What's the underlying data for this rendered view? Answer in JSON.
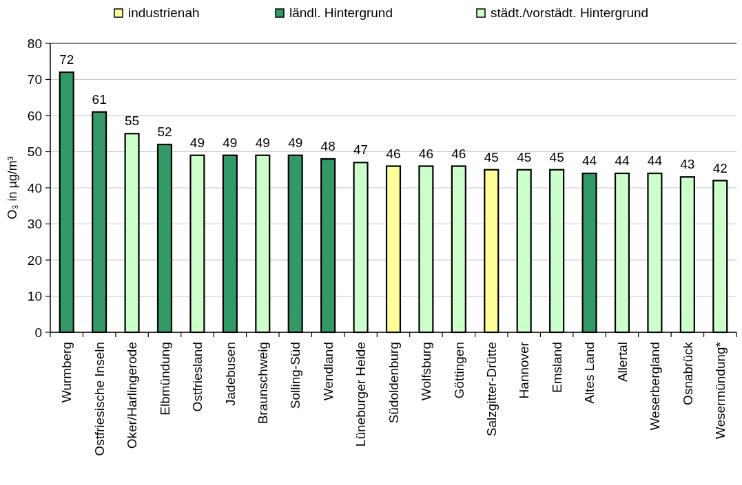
{
  "chart_data": {
    "type": "bar",
    "ylabel": "O₃ in µg/m³",
    "categories": [
      "Wurmberg",
      "Ostfriesische Inseln",
      "Oker/Harlingerode",
      "Elbmündung",
      "Ostfriesland",
      "Jadebusen",
      "Braunschweig",
      "Solling-Süd",
      "Wendland",
      "Lüneburger Heide",
      "Südoldenburg",
      "Wolfsburg",
      "Göttingen",
      "Salzgitter-Drütte",
      "Hannover",
      "Emsland",
      "Altes Land",
      "Allertal",
      "Weserbergland",
      "Osnabrück",
      "Wesermündung*"
    ],
    "series": [
      {
        "name": "industrienah",
        "color": "#ffff99",
        "values": [
          null,
          null,
          null,
          null,
          null,
          null,
          null,
          null,
          null,
          null,
          46,
          null,
          null,
          45,
          null,
          null,
          null,
          null,
          null,
          null,
          null
        ]
      },
      {
        "name": "ländl. Hintergrund",
        "color": "#339966",
        "values": [
          72,
          61,
          null,
          52,
          null,
          49,
          null,
          49,
          48,
          null,
          null,
          null,
          null,
          null,
          null,
          null,
          44,
          null,
          null,
          null,
          null
        ]
      },
      {
        "name": "städt./vorstädt. Hintergrund",
        "color": "#ccffcc",
        "values": [
          null,
          null,
          55,
          null,
          49,
          null,
          49,
          null,
          null,
          47,
          null,
          46,
          46,
          null,
          45,
          45,
          null,
          44,
          44,
          43,
          42
        ]
      }
    ],
    "stacked": true,
    "data_labels": true,
    "ylim": [
      0,
      80
    ],
    "yticks": [
      0,
      10,
      20,
      30,
      40,
      50,
      60,
      70,
      80
    ],
    "grid": "y",
    "legend": "top"
  }
}
